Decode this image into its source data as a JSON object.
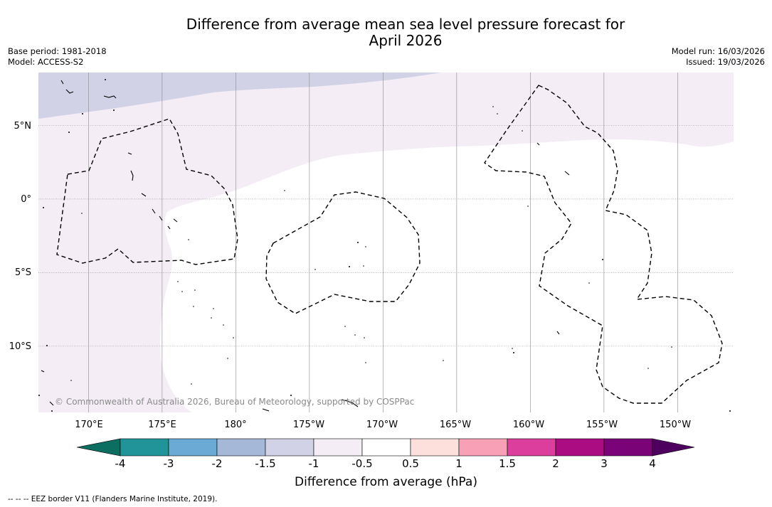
{
  "title": {
    "line1": "Difference from average mean sea level pressure forecast for",
    "line2": "April 2026"
  },
  "meta_left": {
    "base_period": "Base period: 1981-2018",
    "model": "Model: ACCESS-S2"
  },
  "meta_right": {
    "model_run": "Model run: 16/03/2026",
    "issued": "Issued: 19/03/2026"
  },
  "map": {
    "longitude_labels": [
      "170°E",
      "175°E",
      "180°",
      "175°W",
      "170°W",
      "165°W",
      "160°W",
      "155°W",
      "150°W"
    ],
    "latitude_labels": [
      "5°N",
      "0°",
      "5°S",
      "10°S"
    ],
    "lon_range": [
      166.6,
      213.8
    ],
    "lat_range": [
      -14.5,
      8.6
    ],
    "lon_grid": [
      170,
      175,
      180,
      185,
      190,
      195,
      200,
      205,
      210
    ],
    "lat_grid": [
      5,
      0,
      -5,
      -10
    ],
    "copyright": "© Commonwealth of Australia 2026, Bureau of Meteorology, supported by COSPPac",
    "colors": {
      "band_neg_1_5_to_neg_1": "#d2d2e6",
      "band_neg_1_to_neg_0_5": "#f4edf6",
      "band_neg_0_5_to_0_5": "#ffffff",
      "eez_line": "#000000",
      "gridline": "#888888"
    }
  },
  "colorbar": {
    "ticks": [
      "-4",
      "-3",
      "-2",
      "-1.5",
      "-1",
      "-0.5",
      "0.5",
      "1",
      "1.5",
      "2",
      "3",
      "4"
    ],
    "colors": [
      "#0b6e60",
      "#21949a",
      "#6aaad4",
      "#a5b8d8",
      "#d2d2e6",
      "#f4edf6",
      "#ffffff",
      "#fde0dc",
      "#f8a1b6",
      "#dc3e9d",
      "#ab0c82",
      "#790377",
      "#4e005e"
    ],
    "title": "Difference from average (hPa)"
  },
  "legend_note": "--  --  -- EEZ border V11 (Flanders Marine Institute, 2019)."
}
